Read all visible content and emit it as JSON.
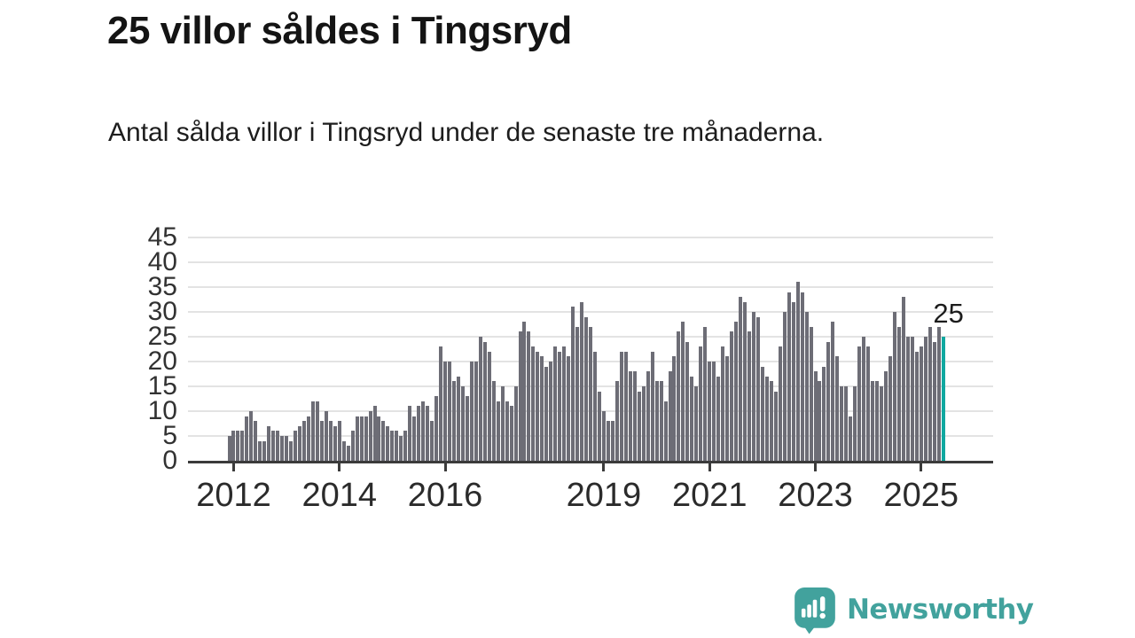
{
  "title": "25 villor såldes i Tingsryd",
  "subtitle": "Antal sålda villor i Tingsryd under de senaste tre månaderna.",
  "annotation": {
    "label": "25"
  },
  "branding": {
    "wordmark": "Newsworthy",
    "icon": "newsworthy-speech-bubble-bar-chart-icon"
  },
  "colors": {
    "bar": "#6d6d76",
    "highlight": "#10a8a0",
    "logo": "#42a29d",
    "grid": "#e3e3e3",
    "axis": "#3b3b3b"
  },
  "chart_data": {
    "type": "bar",
    "title": "25 villor såldes i Tingsryd",
    "subtitle": "Antal sålda villor i Tingsryd under de senaste tre månaderna.",
    "xlabel": "",
    "ylabel": "",
    "ylim": [
      0,
      45
    ],
    "grid": "horizontal",
    "y_ticks": [
      0,
      5,
      10,
      15,
      20,
      25,
      30,
      35,
      40,
      45
    ],
    "frequency": "monthly",
    "start_period": "2011-12",
    "x_tick_labels": [
      "2012",
      "2014",
      "2016",
      "2019",
      "2021",
      "2023",
      "2025"
    ],
    "x_tick_indices": [
      1,
      25,
      49,
      85,
      109,
      133,
      157
    ],
    "highlight_last_bar": true,
    "last_value_label": "25",
    "values": [
      5,
      6,
      6,
      6,
      9,
      10,
      8,
      4,
      4,
      7,
      6,
      6,
      5,
      5,
      4,
      6,
      7,
      8,
      9,
      12,
      12,
      8,
      10,
      8,
      7,
      8,
      4,
      3,
      6,
      9,
      9,
      9,
      10,
      11,
      9,
      8,
      7,
      6,
      6,
      5,
      6,
      11,
      9,
      11,
      12,
      11,
      8,
      13,
      23,
      20,
      20,
      16,
      17,
      15,
      13,
      20,
      20,
      25,
      24,
      22,
      16,
      12,
      15,
      12,
      11,
      15,
      26,
      28,
      26,
      23,
      22,
      21,
      19,
      20,
      23,
      22,
      23,
      21,
      31,
      27,
      32,
      29,
      27,
      22,
      14,
      10,
      8,
      8,
      16,
      22,
      22,
      18,
      18,
      14,
      15,
      18,
      22,
      16,
      16,
      12,
      18,
      21,
      26,
      28,
      24,
      17,
      15,
      23,
      27,
      20,
      20,
      17,
      23,
      21,
      26,
      28,
      33,
      32,
      26,
      30,
      29,
      19,
      17,
      16,
      14,
      23,
      30,
      34,
      32,
      36,
      34,
      30,
      27,
      18,
      16,
      19,
      24,
      28,
      21,
      15,
      15,
      9,
      15,
      23,
      25,
      23,
      16,
      16,
      15,
      18,
      21,
      30,
      27,
      33,
      25,
      25,
      22,
      23,
      25,
      27,
      24,
      27,
      25
    ]
  }
}
